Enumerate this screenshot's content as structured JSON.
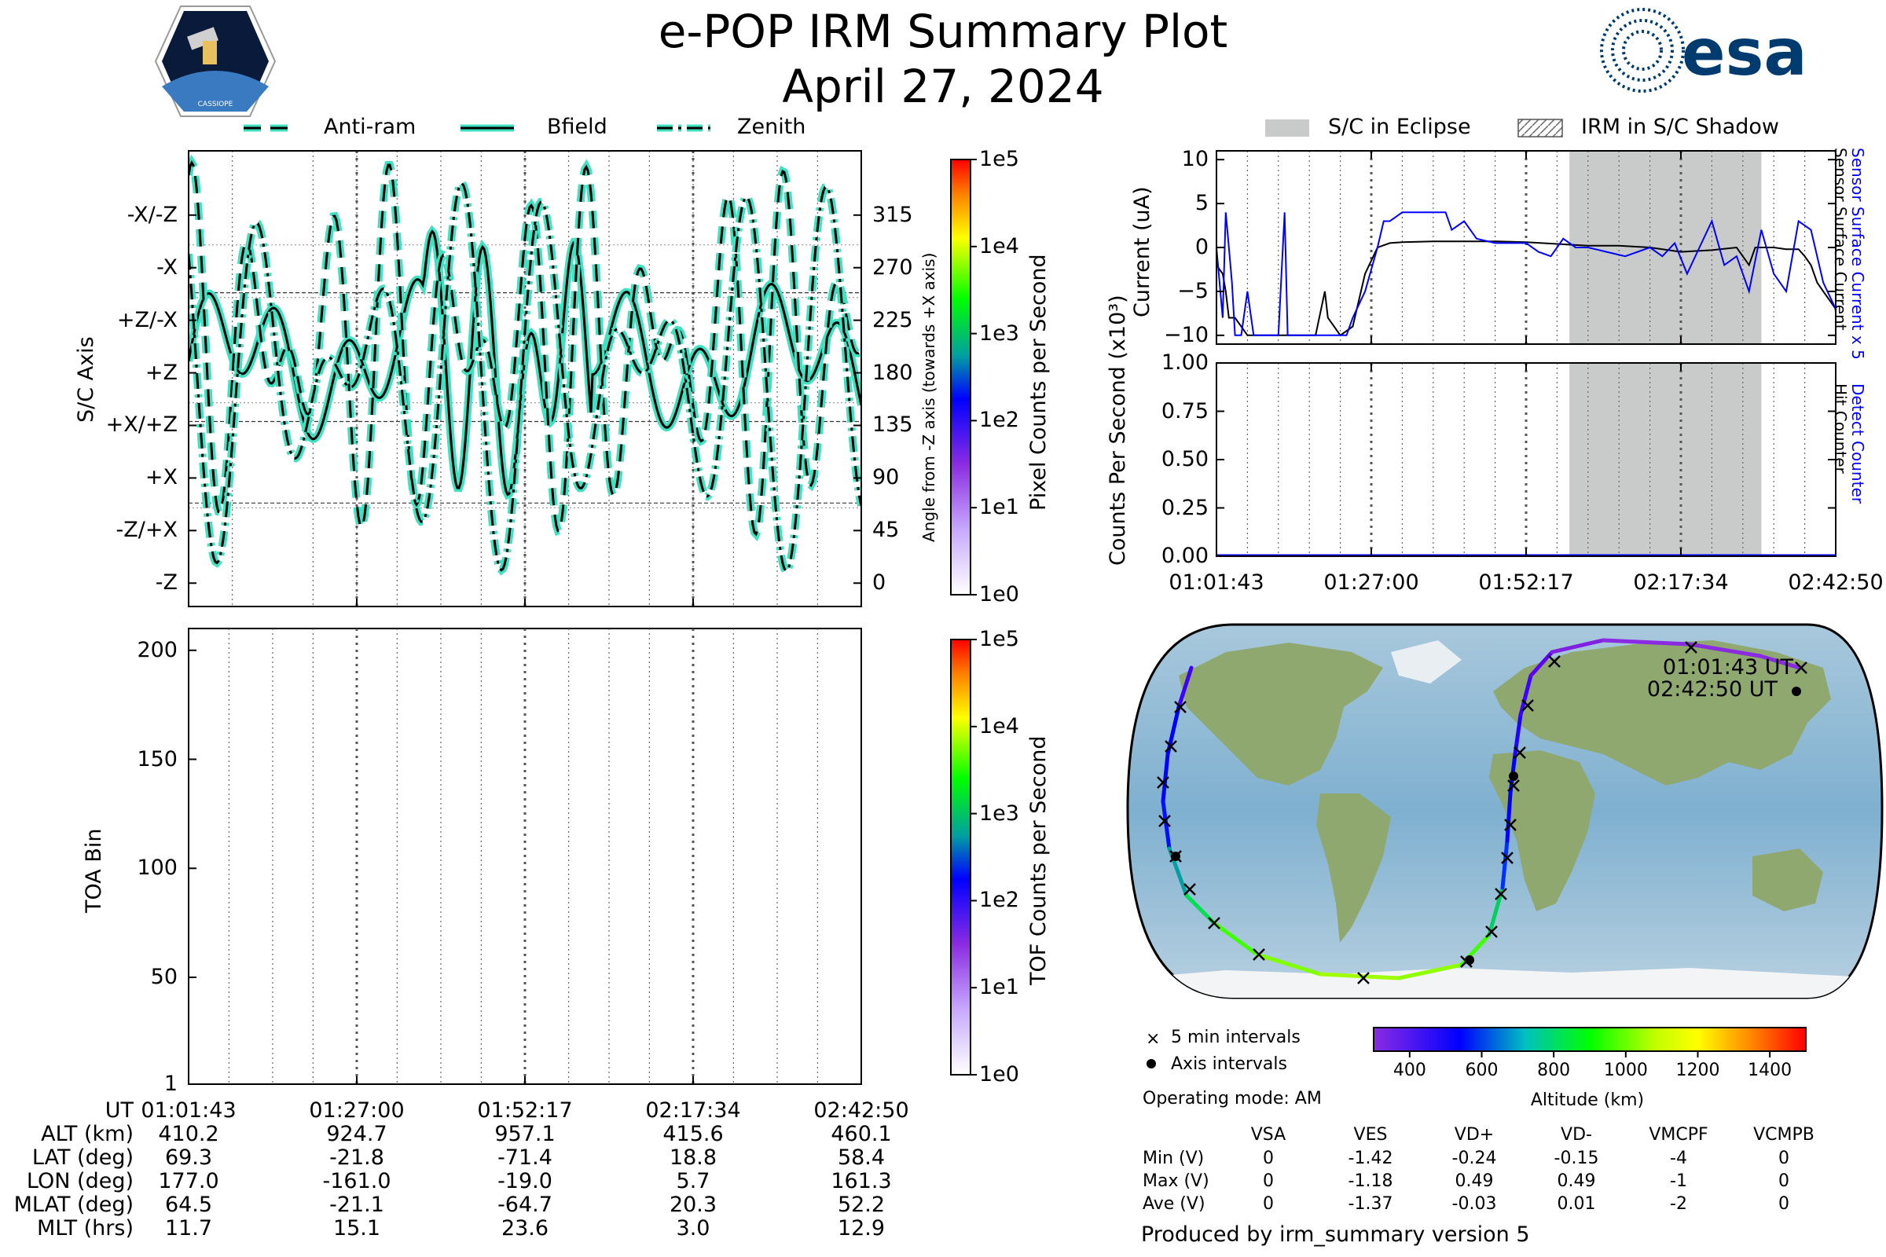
{
  "title": "e-POP IRM Summary Plot",
  "date": "April 27, 2024",
  "logos": {
    "cassiope_text": "CASSIOPE",
    "esa_text": "esa"
  },
  "legend_top": {
    "anti_ram": "Anti-ram",
    "bfield": "Bfield",
    "zenith": "Zenith"
  },
  "legend_right": {
    "eclipse": "S/C in Eclipse",
    "shadow": "IRM in S/C Shadow"
  },
  "colors": {
    "cyan": "#40e0c0",
    "black": "#000000",
    "blue": "#0000ff",
    "eclipse_gray": "#c8cbca",
    "grid": "#555555"
  },
  "chart_data": [
    {
      "type": "line",
      "name": "orientation",
      "ylabel_left": "S/C Axis",
      "ylabel_right": "Angle from -Z axis (towards +X axis)",
      "y_axis_labels": [
        "-X/-Z",
        "-X",
        "+Z/-X",
        "+Z",
        "+X/+Z",
        "+X",
        "-Z/+X",
        "-Z"
      ],
      "y_ticks_right": [
        "315",
        "270",
        "225",
        "180",
        "135",
        "90",
        "45",
        "0"
      ],
      "ylim": [
        -20,
        370
      ],
      "colorbar": {
        "label": "Pixel Counts per Second",
        "ticks": [
          "1e5",
          "1e4",
          "1e3",
          "1e2",
          "1e1",
          "1e0"
        ]
      },
      "series": [
        {
          "name": "Anti-ram",
          "style": "dashed"
        },
        {
          "name": "Bfield",
          "style": "solid"
        },
        {
          "name": "Zenith",
          "style": "dashdot"
        }
      ]
    },
    {
      "type": "heatmap",
      "name": "toa",
      "ylabel": "TOA Bin",
      "y_ticks": [
        "200",
        "150",
        "100",
        "50",
        "1"
      ],
      "ylim": [
        1,
        210
      ],
      "colorbar": {
        "label": "TOF Counts per Second",
        "ticks": [
          "1e5",
          "1e4",
          "1e3",
          "1e2",
          "1e1",
          "1e0"
        ]
      }
    },
    {
      "type": "line",
      "name": "current",
      "ylabel": "Current (uA)",
      "ylim": [
        -11,
        11
      ],
      "y_ticks": [
        "10",
        "5",
        "0",
        "−5",
        "−10"
      ],
      "right_labels": {
        "blue": "Sensor Surface Current x 5",
        "black": "Sensor Surface Current"
      },
      "eclipse_span": [
        0.57,
        0.88
      ],
      "series": [
        {
          "name": "Sensor Surface Current",
          "color": "#000000",
          "x": [
            0,
            0.01,
            0.015,
            0.02,
            0.03,
            0.04,
            0.05,
            0.06,
            0.08,
            0.1,
            0.12,
            0.14,
            0.16,
            0.175,
            0.18,
            0.19,
            0.2,
            0.22,
            0.24,
            0.26,
            0.28,
            0.3,
            0.35,
            0.4,
            0.45,
            0.5,
            0.55,
            0.6,
            0.65,
            0.7,
            0.75,
            0.8,
            0.84,
            0.85,
            0.86,
            0.87,
            0.88,
            0.89,
            0.9,
            0.92,
            0.94,
            0.95,
            0.96,
            0.97,
            0.98,
            0.99,
            1.0
          ],
          "values": [
            -2,
            -3,
            -5,
            -8,
            -8,
            -9,
            -10,
            -10,
            -10,
            -10,
            -10,
            -10,
            -10,
            -5,
            -8,
            -9,
            -10,
            -9,
            -3,
            0,
            0.5,
            0.6,
            0.7,
            0.7,
            0.7,
            0.6,
            0.4,
            0.2,
            0.2,
            0,
            -0.5,
            -0.3,
            0,
            -1,
            -2,
            0,
            0,
            0,
            0,
            -0.2,
            -0.2,
            -1,
            -2,
            -4,
            -5,
            -6,
            -7
          ]
        },
        {
          "name": "Sensor Surface Current x 5",
          "color": "#0000ff",
          "x": [
            0,
            0.01,
            0.015,
            0.02,
            0.025,
            0.03,
            0.04,
            0.05,
            0.06,
            0.07,
            0.1,
            0.11,
            0.115,
            0.12,
            0.18,
            0.19,
            0.2,
            0.21,
            0.22,
            0.24,
            0.26,
            0.27,
            0.28,
            0.3,
            0.33,
            0.35,
            0.37,
            0.38,
            0.4,
            0.42,
            0.45,
            0.5,
            0.52,
            0.54,
            0.56,
            0.58,
            0.6,
            0.63,
            0.66,
            0.7,
            0.72,
            0.74,
            0.76,
            0.78,
            0.8,
            0.82,
            0.84,
            0.86,
            0.88,
            0.9,
            0.92,
            0.94,
            0.96,
            0.98,
            1.0
          ],
          "values": [
            0,
            -8,
            4,
            0,
            -4,
            -10,
            -10,
            -5,
            -10,
            -10,
            -10,
            4,
            -10,
            -10,
            -10,
            -10,
            -10,
            -10,
            -8,
            -5,
            0,
            3,
            3,
            4,
            4,
            4,
            4,
            2,
            3,
            1,
            0.5,
            0.5,
            -0.5,
            -1,
            1,
            0,
            0,
            -0.5,
            -1,
            0,
            -1,
            0.5,
            -3,
            0,
            3,
            -2,
            -1,
            -5,
            2,
            -3,
            -5,
            3,
            2,
            -4,
            -7
          ]
        }
      ]
    },
    {
      "type": "line",
      "name": "counts",
      "ylabel": "Counts Per Second (x10³)",
      "ylim": [
        0,
        1.0
      ],
      "y_ticks": [
        "1.00",
        "0.75",
        "0.50",
        "0.25",
        "0.00"
      ],
      "right_labels": {
        "blue": "Detect Counter",
        "black": "Hit Counter"
      },
      "eclipse_span": [
        0.57,
        0.88
      ],
      "series": [
        {
          "name": "Detect Counter",
          "color": "#0000ff",
          "x": [
            0,
            1
          ],
          "values": [
            0,
            0
          ]
        },
        {
          "name": "Hit Counter",
          "color": "#000000",
          "x": [
            0,
            1
          ],
          "values": [
            0,
            0
          ]
        }
      ]
    }
  ],
  "time_ticks": [
    "01:01:43",
    "01:27:00",
    "01:52:17",
    "02:17:34",
    "02:42:50"
  ],
  "ephemeris": {
    "labels": [
      "UT",
      "ALT (km)",
      "LAT (deg)",
      "LON (deg)",
      "MLAT (deg)",
      "MLT (hrs)"
    ],
    "columns": [
      [
        "01:01:43",
        "410.2",
        "69.3",
        "177.0",
        "64.5",
        "11.7"
      ],
      [
        "01:27:00",
        "924.7",
        "-21.8",
        "-161.0",
        "-21.1",
        "15.1"
      ],
      [
        "01:52:17",
        "957.1",
        "-71.4",
        "-19.0",
        "-64.7",
        "23.6"
      ],
      [
        "02:17:34",
        "415.6",
        "18.8",
        "5.7",
        "20.3",
        "3.0"
      ],
      [
        "02:42:50",
        "460.1",
        "58.4",
        "161.3",
        "52.2",
        "12.9"
      ]
    ]
  },
  "map": {
    "start_label": "01:01:43 UT",
    "end_label": "02:42:50 UT",
    "legend_5min": "5 min intervals",
    "legend_axis": "Axis intervals",
    "altitude_label": "Altitude (km)",
    "altitude_ticks": [
      "400",
      "600",
      "800",
      "1000",
      "1200",
      "1400"
    ],
    "altitude_range": [
      300,
      1500
    ]
  },
  "operating_mode": "Operating mode: AM",
  "voltage_table": {
    "headers": [
      "VSA",
      "VES",
      "VD+",
      "VD-",
      "VMCPF",
      "VCMPB"
    ],
    "rows": [
      {
        "label": "Min (V)",
        "values": [
          "0",
          "-1.42",
          "-0.24",
          "-0.15",
          "-4",
          "0"
        ]
      },
      {
        "label": "Max (V)",
        "values": [
          "0",
          "-1.18",
          "0.49",
          "0.49",
          "-1",
          "0"
        ]
      },
      {
        "label": "Ave (V)",
        "values": [
          "0",
          "-1.37",
          "-0.03",
          "0.01",
          "-2",
          "0"
        ]
      }
    ]
  },
  "footer": "Produced by irm_summary version 5"
}
